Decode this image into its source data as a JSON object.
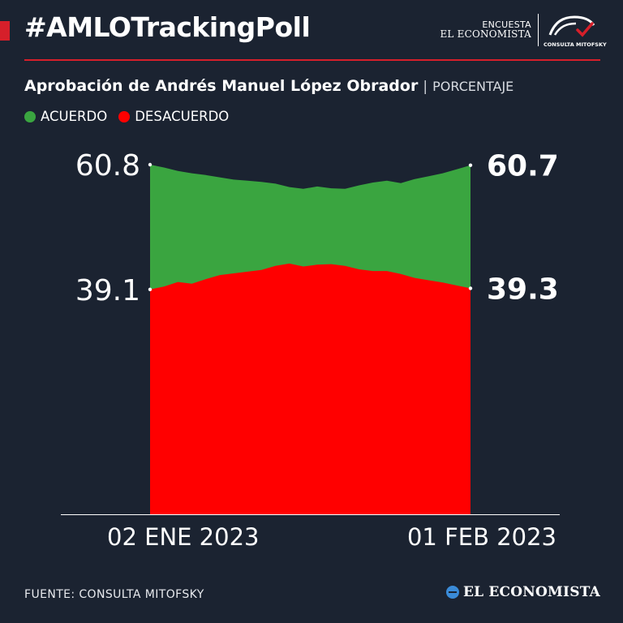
{
  "header": {
    "hashtag": "#AMLOTrackingPoll",
    "brand_line1": "ENCUESTA",
    "brand_line2": "EL ECONOMISTA",
    "partner_label": "CONSULTA MITOFSKY"
  },
  "subtitle": {
    "main": "Aprobación de Andrés Manuel López Obrador",
    "separator": "|",
    "unit": "PORCENTAJE"
  },
  "legend": [
    {
      "label": "ACUERDO",
      "color": "#3aa540"
    },
    {
      "label": "DESACUERDO",
      "color": "#ff0000"
    }
  ],
  "chart_data": {
    "type": "area",
    "x_start_label": "02  ENE 2023",
    "x_end_label": "01 FEB 2023",
    "ylim": [
      0,
      60.8
    ],
    "series": [
      {
        "name": "ACUERDO",
        "color": "#3aa540",
        "values": [
          60.8,
          60.3,
          59.7,
          59.3,
          59.0,
          58.6,
          58.2,
          58.0,
          57.8,
          57.5,
          56.9,
          56.6,
          57.0,
          56.7,
          56.6,
          57.2,
          57.7,
          58.0,
          57.6,
          58.3,
          58.8,
          59.3,
          60.0,
          60.7
        ],
        "start_label": "60.8",
        "end_label": "60.7"
      },
      {
        "name": "DESACUERDO",
        "color": "#ff0000",
        "values": [
          39.1,
          39.6,
          40.4,
          40.1,
          40.9,
          41.6,
          41.9,
          42.2,
          42.5,
          43.2,
          43.6,
          43.1,
          43.4,
          43.5,
          43.2,
          42.6,
          42.3,
          42.3,
          41.8,
          41.1,
          40.7,
          40.3,
          39.8,
          39.3
        ],
        "start_label": "39.1",
        "end_label": "39.3"
      }
    ],
    "xlabel": "",
    "ylabel": "",
    "grid": false
  },
  "footer": {
    "source": "FUENTE: CONSULTA MITOFSKY",
    "publisher": "EL ECONOMISTA"
  }
}
